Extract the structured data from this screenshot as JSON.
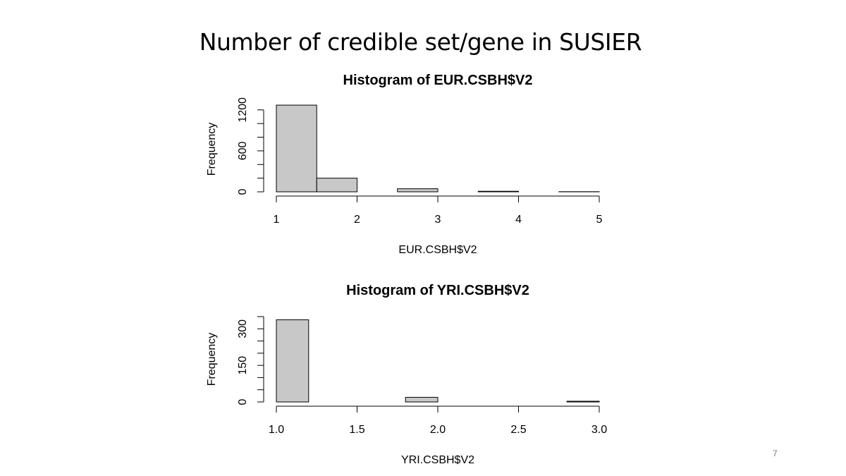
{
  "slide": {
    "title": "Number of credible set/gene in SUSIER",
    "page_number": "7"
  },
  "chart_data": [
    {
      "type": "bar",
      "title": "Histogram of EUR.CSBH$V2",
      "xlabel": "EUR.CSBH$V2",
      "ylabel": "Frequency",
      "xlim": [
        1,
        5
      ],
      "ylim": [
        0,
        1250
      ],
      "x_ticks": [
        1,
        2,
        3,
        4,
        5
      ],
      "x_tick_labels": [
        "1",
        "2",
        "3",
        "4",
        "5"
      ],
      "y_ticks": [
        0,
        200,
        400,
        600,
        800,
        1000,
        1200
      ],
      "y_tick_labels": [
        "0",
        "",
        "",
        "600",
        "",
        "",
        "1200"
      ],
      "bins": [
        {
          "x0": 1.0,
          "x1": 1.5,
          "count": 1270
        },
        {
          "x0": 1.5,
          "x1": 2.0,
          "count": 200
        },
        {
          "x0": 2.0,
          "x1": 2.5,
          "count": 0
        },
        {
          "x0": 2.5,
          "x1": 3.0,
          "count": 45
        },
        {
          "x0": 3.0,
          "x1": 3.5,
          "count": 0
        },
        {
          "x0": 3.5,
          "x1": 4.0,
          "count": 8
        },
        {
          "x0": 4.0,
          "x1": 4.5,
          "count": 0
        },
        {
          "x0": 4.5,
          "x1": 5.0,
          "count": 2
        }
      ],
      "fill": "#c8c8c8"
    },
    {
      "type": "bar",
      "title": "Histogram of YRI.CSBH$V2",
      "xlabel": "YRI.CSBH$V2",
      "ylabel": "Frequency",
      "xlim": [
        1.0,
        3.0
      ],
      "ylim": [
        0,
        350
      ],
      "x_ticks": [
        1.0,
        1.5,
        2.0,
        2.5,
        3.0
      ],
      "x_tick_labels": [
        "1.0",
        "1.5",
        "2.0",
        "2.5",
        "3.0"
      ],
      "y_ticks": [
        0,
        50,
        100,
        150,
        200,
        250,
        300,
        350
      ],
      "y_tick_labels": [
        "0",
        "",
        "",
        "150",
        "",
        "",
        "300",
        ""
      ],
      "bins": [
        {
          "x0": 1.0,
          "x1": 1.2,
          "count": 337
        },
        {
          "x0": 1.2,
          "x1": 1.4,
          "count": 0
        },
        {
          "x0": 1.4,
          "x1": 1.6,
          "count": 0
        },
        {
          "x0": 1.6,
          "x1": 1.8,
          "count": 0
        },
        {
          "x0": 1.8,
          "x1": 2.0,
          "count": 19
        },
        {
          "x0": 2.0,
          "x1": 2.2,
          "count": 0
        },
        {
          "x0": 2.2,
          "x1": 2.4,
          "count": 0
        },
        {
          "x0": 2.4,
          "x1": 2.6,
          "count": 0
        },
        {
          "x0": 2.6,
          "x1": 2.8,
          "count": 0
        },
        {
          "x0": 2.8,
          "x1": 3.0,
          "count": 3
        }
      ],
      "fill": "#c8c8c8"
    }
  ]
}
